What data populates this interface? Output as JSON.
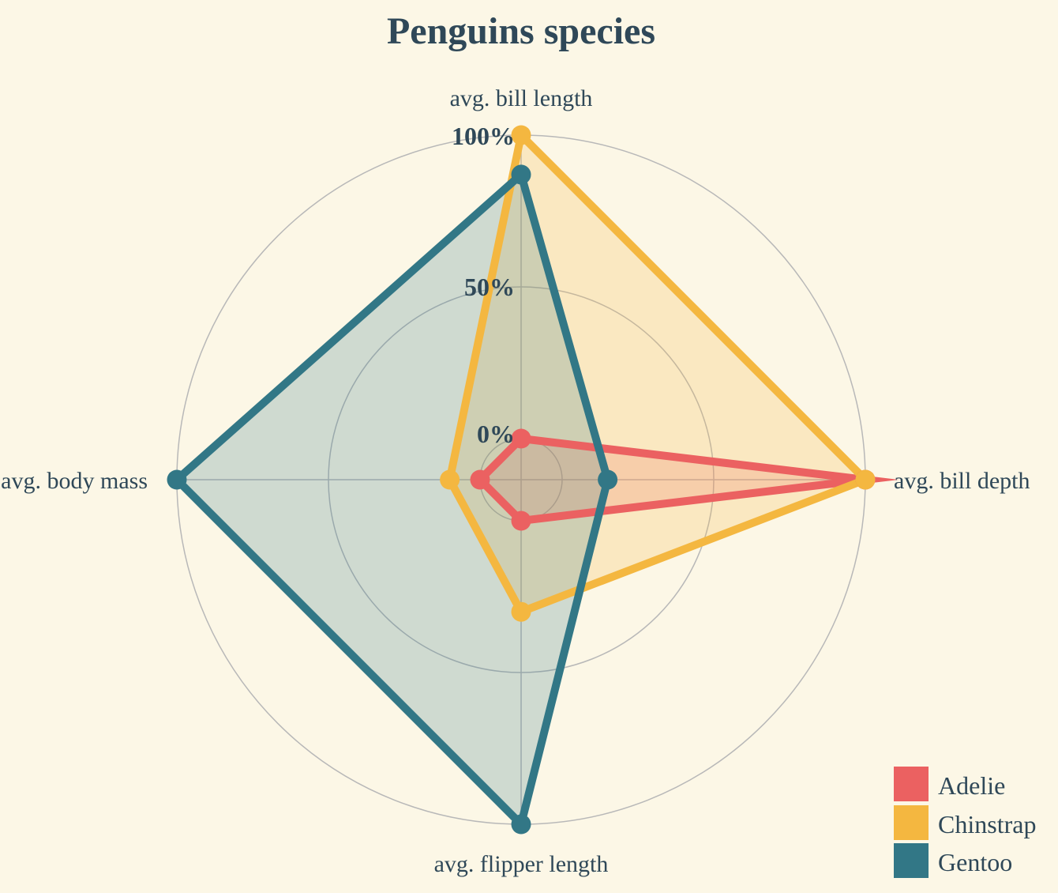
{
  "chart_data": {
    "type": "radar",
    "title": "Penguins species",
    "axes": [
      "avg. bill length",
      "avg. bill depth",
      "avg. flipper length",
      "avg. body mass"
    ],
    "radial_ticks": [
      "0%",
      "50%",
      "100%"
    ],
    "range": [
      0,
      100
    ],
    "grid": true,
    "legend_position": "bottom-right",
    "series": [
      {
        "name": "Adelie",
        "color": "#eb6161",
        "values": [
          0,
          100,
          0,
          0
        ]
      },
      {
        "name": "Chinstrap",
        "color": "#f4b740",
        "values": [
          100,
          100,
          30,
          10
        ]
      },
      {
        "name": "Gentoo",
        "color": "#327786",
        "values": [
          87,
          15,
          100,
          100
        ]
      }
    ]
  }
}
